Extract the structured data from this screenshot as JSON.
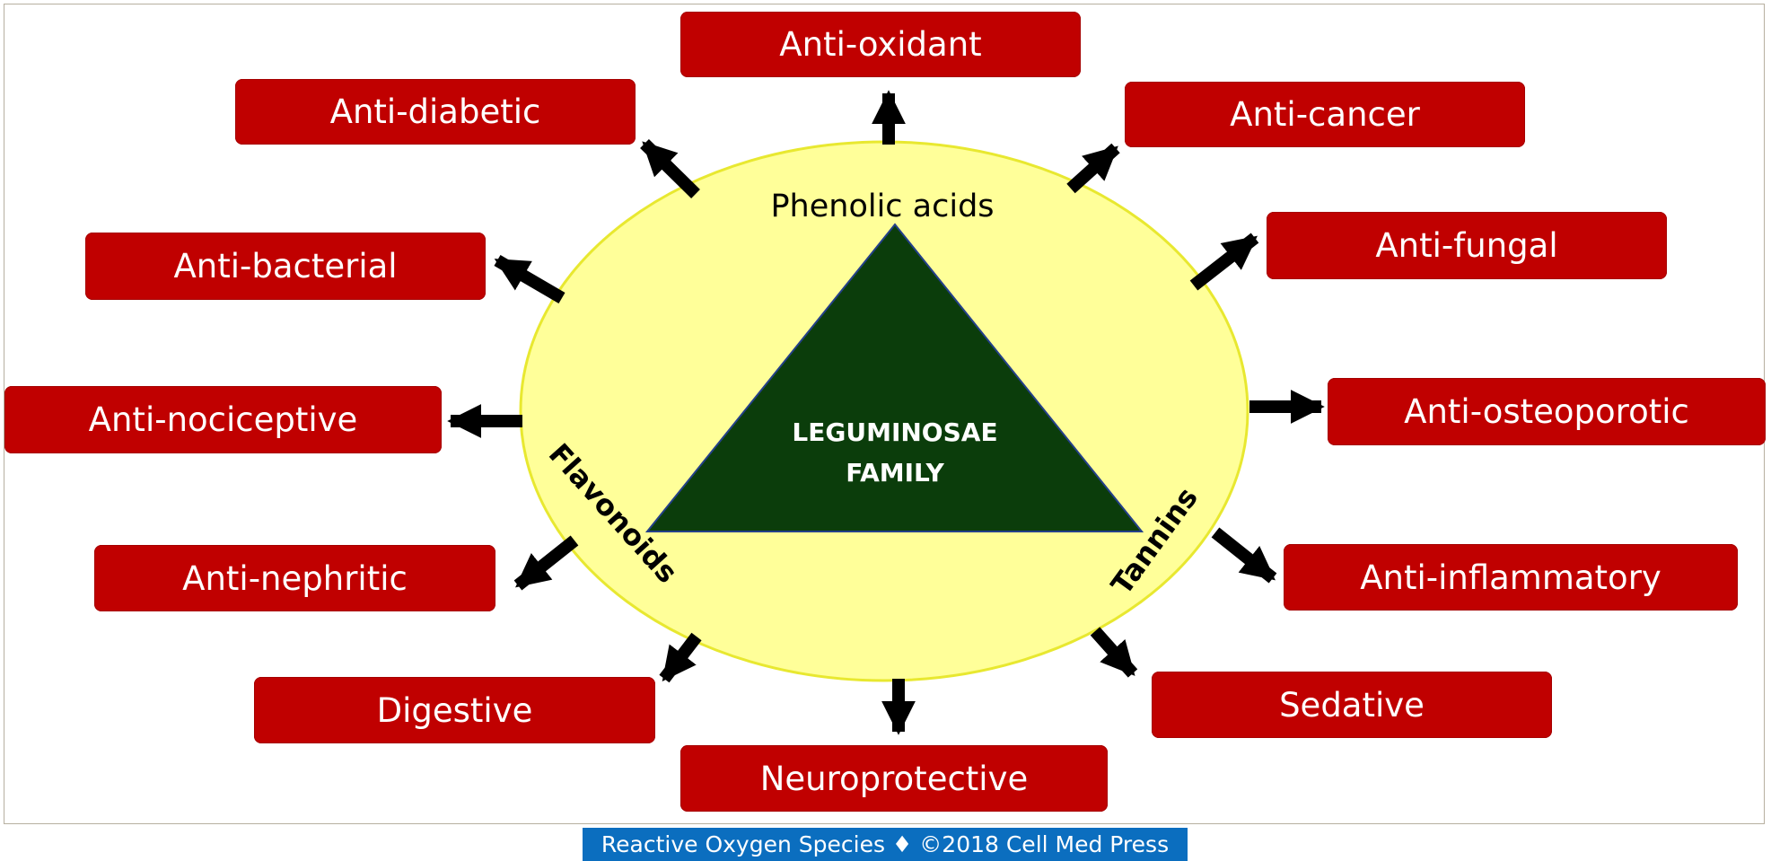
{
  "center": {
    "line1": "LEGUMINOSAE",
    "line2": "FAMILY"
  },
  "compounds": {
    "top": "Phenolic acids",
    "left": "Flavonoids",
    "right": "Tannins"
  },
  "effects": {
    "anti_oxidant": "Anti-oxidant",
    "anti_diabetic": "Anti-diabetic",
    "anti_cancer": "Anti-cancer",
    "anti_bacterial": "Anti-bacterial",
    "anti_fungal": "Anti-fungal",
    "anti_nociceptive": "Anti-nociceptive",
    "anti_osteoporotic": "Anti-osteoporotic",
    "anti_nephritic": "Anti-nephritic",
    "anti_inflammatory": "Anti-inflammatory",
    "digestive": "Digestive",
    "sedative": "Sedative",
    "neuroprotective": "Neuroprotective"
  },
  "footer": "Reactive Oxygen Species ♦ ©2018 Cell Med Press",
  "colors": {
    "effect_box": "#c00000",
    "ellipse_fill": "#ffff99",
    "ellipse_stroke": "#e8e830",
    "triangle_fill": "#0b3d0b",
    "arrow": "#000000",
    "footer_bg": "#0b6ebf"
  }
}
